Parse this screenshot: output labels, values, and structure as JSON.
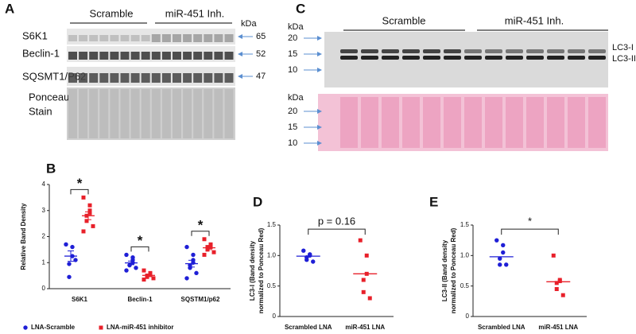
{
  "panel_labels": [
    "A",
    "B",
    "C",
    "D",
    "E"
  ],
  "blot_a": {
    "groups": [
      "Scramble",
      "miR-451 Inh."
    ],
    "kda": "kDa",
    "rows": [
      "S6K1",
      "Beclin-1",
      "SQSMT1/P62"
    ],
    "ponceau": [
      "Ponceau",
      "Stain"
    ],
    "markers": [
      "65",
      "52",
      "47"
    ]
  },
  "blot_c": {
    "groups": [
      "Scramble",
      "miR-451 Inh."
    ],
    "kda": "kDa",
    "markers_top": [
      "20",
      "15",
      "10"
    ],
    "bands": [
      "LC3-I",
      "LC3-II"
    ],
    "markers_bottom": [
      "20",
      "15",
      "10"
    ]
  },
  "chart_data": [
    {
      "type": "strip",
      "y_label": [
        "Relative Band Density"
      ],
      "categories": [
        "S6K1",
        "Beclin-1",
        "SQSTM1/p62"
      ],
      "series": [
        {
          "name": "LNA-Scramble",
          "color": "#1f1fd6",
          "marker": "circle",
          "values": [
            [
              1.7,
              1.6,
              1.25,
              0.95,
              0.45,
              1.1
            ],
            [
              1.3,
              1.1,
              1.0,
              0.9,
              0.9,
              0.8,
              0.7,
              1.2
            ],
            [
              1.6,
              1.3,
              1.0,
              0.9,
              0.8,
              0.6,
              0.4,
              1.1
            ]
          ],
          "means": [
            1.25,
            0.99,
            0.96
          ],
          "sem": [
            0.2,
            0.07,
            0.13
          ]
        },
        {
          "name": "LNA-miR-451 inhibitor",
          "color": "#e8202a",
          "marker": "square",
          "values": [
            [
              3.5,
              3.2,
              2.9,
              2.8,
              2.6,
              2.4,
              2.2,
              3.0
            ],
            [
              0.7,
              0.6,
              0.55,
              0.5,
              0.45,
              0.4,
              0.35
            ],
            [
              1.9,
              1.7,
              1.6,
              1.6,
              1.5,
              1.4,
              1.3
            ]
          ],
          "means": [
            2.8,
            0.51,
            1.57
          ],
          "sem": [
            0.15,
            0.05,
            0.07
          ]
        }
      ],
      "annotations": [
        "*",
        "*",
        "*"
      ],
      "ylim": [
        0,
        4
      ],
      "yticks": [
        0,
        1,
        2,
        3,
        4
      ]
    },
    {
      "type": "strip",
      "y_label": [
        "LC3-I (Band density",
        "normalized to Ponceau Red)"
      ],
      "categories": [
        "Scrambled LNA",
        "miR-451 LNA"
      ],
      "colors": [
        "#1f1fd6",
        "#e8202a"
      ],
      "markers": [
        "circle",
        "square"
      ],
      "values": [
        [
          1.08,
          1.02,
          1.0,
          0.97,
          0.93,
          0.9
        ],
        [
          1.25,
          1.0,
          0.7,
          0.6,
          0.4,
          0.3
        ]
      ],
      "means": [
        0.99,
        0.7
      ],
      "annotation": "p = 0.16",
      "ylim": [
        0,
        1.5
      ],
      "yticks": [
        0,
        0.5,
        {
          "value": 1,
          "label": "1.0"
        },
        1.5
      ]
    },
    {
      "type": "strip",
      "y_label": [
        "LC3-II (Band density",
        "normalized to Ponceau Red)"
      ],
      "categories": [
        "Scrambled LNA",
        "miR-451 LNA"
      ],
      "colors": [
        "#1f1fd6",
        "#e8202a"
      ],
      "markers": [
        "circle",
        "square"
      ],
      "values": [
        [
          1.25,
          1.17,
          1.05,
          0.95,
          0.85,
          0.85
        ],
        [
          1.0,
          0.6,
          0.58,
          0.55,
          0.45,
          0.35
        ]
      ],
      "means": [
        0.98,
        0.57
      ],
      "annotation": "*",
      "ylim": [
        0,
        1.5
      ],
      "yticks": [
        0,
        0.5,
        {
          "value": 1,
          "label": "1.0"
        },
        1.5
      ]
    }
  ]
}
